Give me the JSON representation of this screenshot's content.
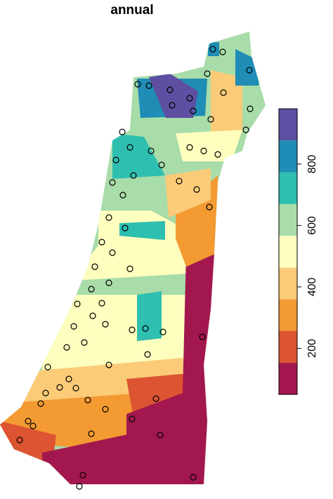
{
  "title": "annual",
  "legend": {
    "lim": [
      50,
      980
    ],
    "breaks": [
      50,
      153,
      257,
      360,
      463,
      567,
      670,
      773,
      877,
      980
    ],
    "colors": [
      "#a3174f",
      "#dc5431",
      "#f39a32",
      "#fbcb78",
      "#fefebe",
      "#a8dca9",
      "#2fbfb0",
      "#1f8db6",
      "#5e4fa2"
    ],
    "ticks": [
      200,
      400,
      600,
      800
    ]
  }
}
